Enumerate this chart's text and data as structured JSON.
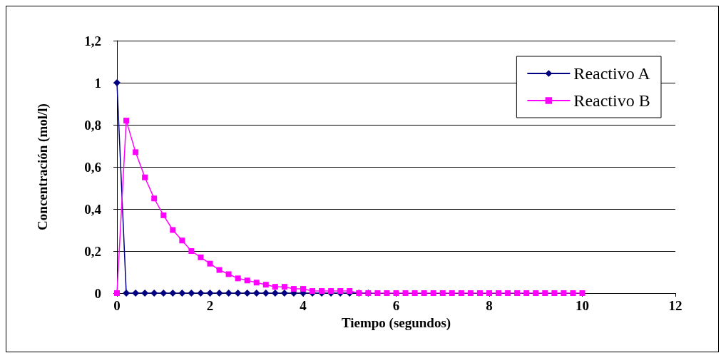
{
  "chart_data": {
    "type": "line",
    "xlabel": "Tiempo (segundos)",
    "ylabel": "Concentración (mol/l)",
    "x": [
      0,
      0.2,
      0.4,
      0.6,
      0.8,
      1,
      1.2,
      1.4,
      1.6,
      1.8,
      2,
      2.2,
      2.4,
      2.6,
      2.8,
      3,
      3.2,
      3.4,
      3.6,
      3.8,
      4,
      4.2,
      4.4,
      4.6,
      4.8,
      5,
      5.2,
      5.4,
      5.6,
      5.8,
      6,
      6.2,
      6.4,
      6.6,
      6.8,
      7,
      7.2,
      7.4,
      7.6,
      7.8,
      8,
      8.2,
      8.4,
      8.6,
      8.8,
      9,
      9.2,
      9.4,
      9.6,
      9.8,
      10
    ],
    "series": [
      {
        "name": "Reactivo A",
        "color": "#000080",
        "marker": "diamond",
        "values": [
          1,
          0,
          0,
          0,
          0,
          0,
          0,
          0,
          0,
          0,
          0,
          0,
          0,
          0,
          0,
          0,
          0,
          0,
          0,
          0,
          0,
          0,
          0,
          0,
          0,
          0,
          0,
          0,
          null,
          null,
          null,
          null,
          null,
          null,
          null,
          null,
          null,
          null,
          null,
          null,
          null,
          null,
          null,
          null,
          null,
          null,
          null,
          null,
          null,
          null,
          null
        ]
      },
      {
        "name": "Reactivo B",
        "color": "#ff00ff",
        "marker": "square",
        "values": [
          0,
          0.82,
          0.67,
          0.55,
          0.45,
          0.37,
          0.3,
          0.25,
          0.2,
          0.17,
          0.14,
          0.11,
          0.09,
          0.07,
          0.06,
          0.05,
          0.04,
          0.03,
          0.03,
          0.02,
          0.02,
          0.01,
          0.01,
          0.01,
          0.01,
          0.01,
          0,
          0,
          0,
          0,
          0,
          0,
          0,
          0,
          0,
          0,
          0,
          0,
          0,
          0,
          0,
          0,
          0,
          0,
          0,
          0,
          0,
          0,
          0,
          0,
          0
        ]
      }
    ],
    "xlim": [
      0,
      12
    ],
    "xticks": [
      0,
      2,
      4,
      6,
      8,
      10,
      12
    ],
    "ylim": [
      0,
      1.2
    ],
    "yticks": [
      0,
      {
        "value": 0.2,
        "label": "0,2"
      },
      {
        "value": 0.4,
        "label": "0,4"
      },
      {
        "value": 0.6,
        "label": "0,6"
      },
      {
        "value": 0.8,
        "label": "0,8"
      },
      1,
      {
        "value": 1.2,
        "label": "1,2"
      }
    ],
    "grid": "y",
    "legend": "top right",
    "line_style": "solid"
  }
}
